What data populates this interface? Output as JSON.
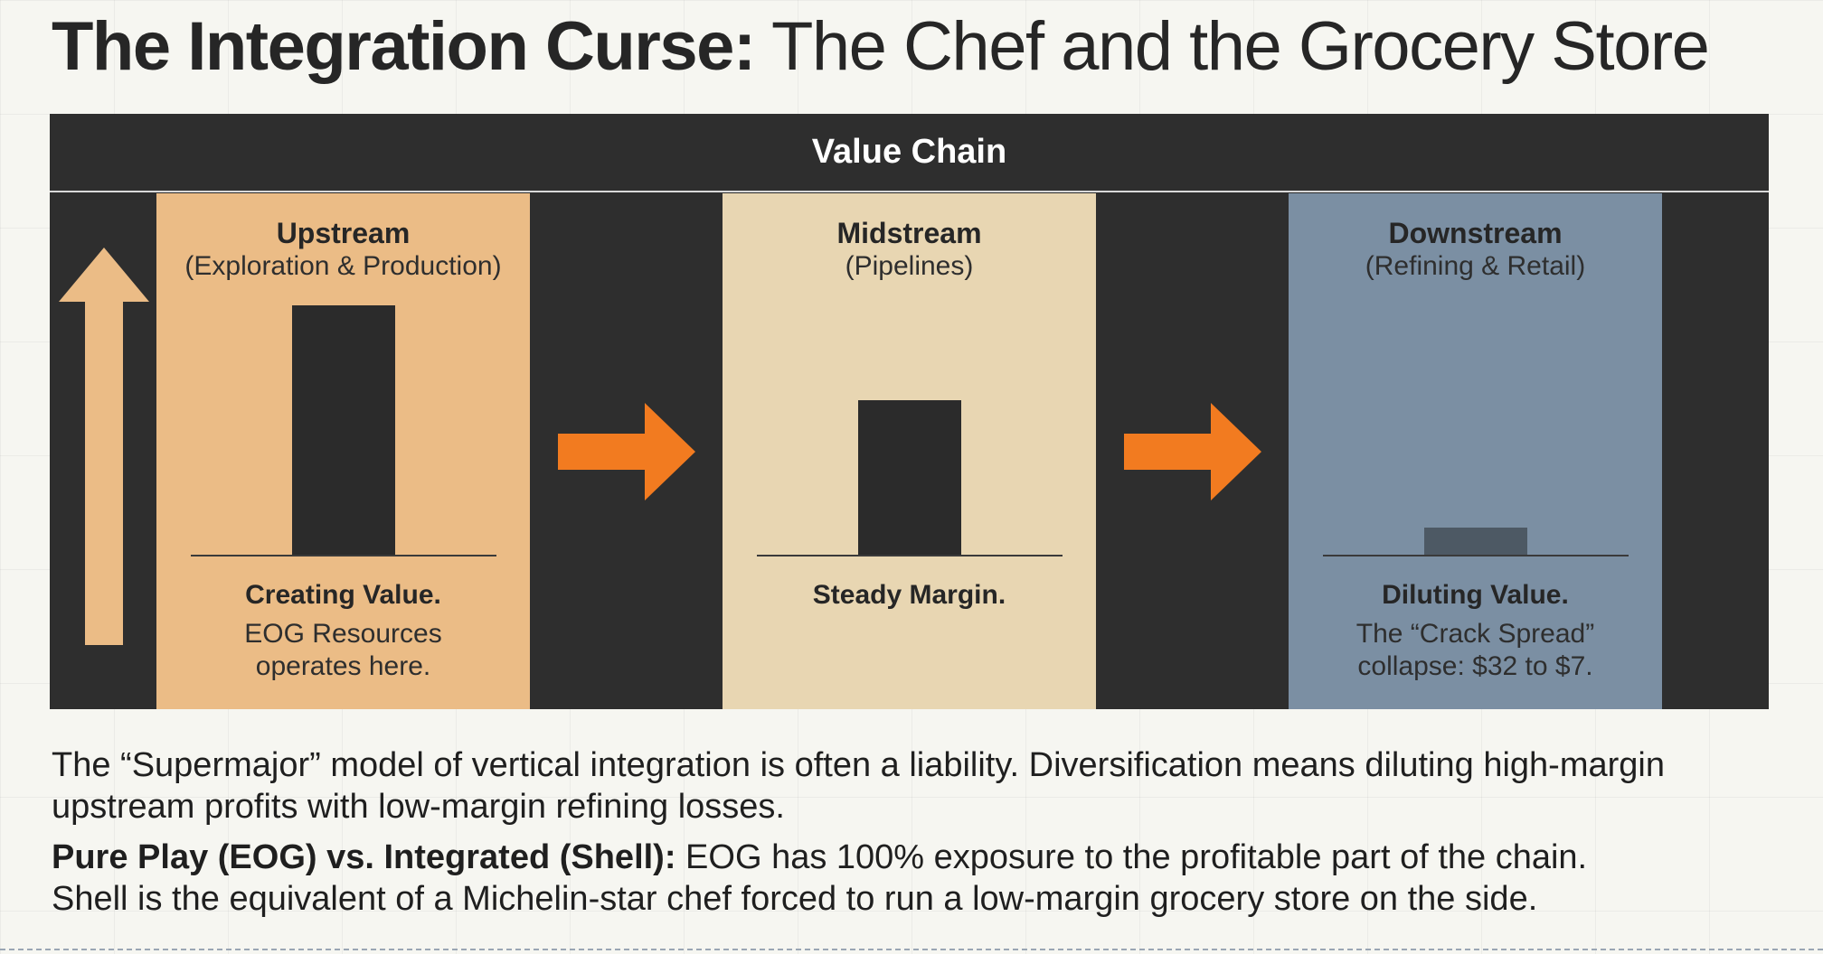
{
  "title": {
    "bold": "The Integration Curse:",
    "rest": " The Chef and the Grocery Store"
  },
  "diagram": {
    "header": "Value Chain",
    "stages": [
      {
        "name": "Upstream",
        "sub": "(Exploration & Production)",
        "label": "Creating Value.",
        "desc_line1": "EOG Resources",
        "desc_line2": "operates here.",
        "color": "#ebbc86",
        "relative_margin": 1.0
      },
      {
        "name": "Midstream",
        "sub": "(Pipelines)",
        "label": "Steady Margin.",
        "desc_line1": "",
        "desc_line2": "",
        "color": "#e8d6b2",
        "relative_margin": 0.62
      },
      {
        "name": "Downstream",
        "sub": "(Refining & Retail)",
        "label": "Diluting Value.",
        "desc_line1": "The “Crack Spread”",
        "desc_line2": "collapse: $32 to $7.",
        "color": "#7b8fa3",
        "relative_margin": 0.11
      }
    ],
    "colors": {
      "background": "#2e2e2e",
      "flow_arrow": "#f27b20",
      "up_arrow": "#ebbc86"
    }
  },
  "paragraph1": "The “Supermajor” model of vertical integration is often a liability. Diversification means diluting high-margin upstream profits with low-margin refining losses.",
  "paragraph2": {
    "bold": "Pure Play (EOG) vs. Integrated (Shell):",
    "line1_rest": " EOG has 100% exposure to the profitable part of the chain.",
    "line2": "Shell is the equivalent of a Michelin-star chef forced to run a low-margin grocery store on the side."
  }
}
